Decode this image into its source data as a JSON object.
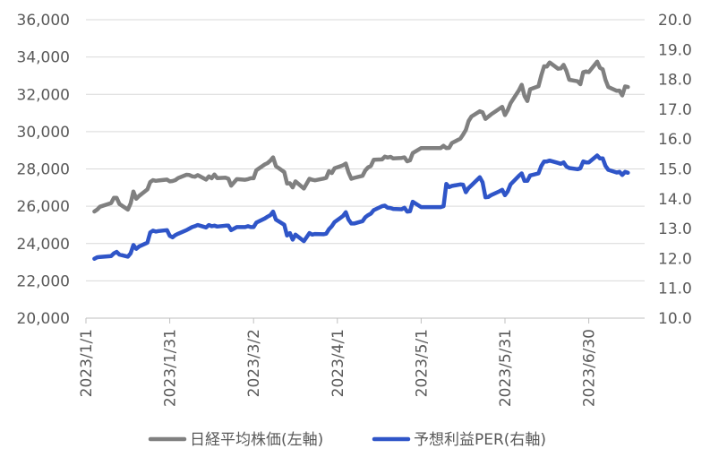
{
  "chart_data": {
    "type": "line",
    "title": "",
    "xlabel": "",
    "ylabel": "",
    "x_ticks": [
      "2023/1/1",
      "2023/1/31",
      "2023/3/2",
      "2023/4/1",
      "2023/5/1",
      "2023/5/31",
      "2023/6/30"
    ],
    "y_left": {
      "ticks": [
        "20,000",
        "22,000",
        "24,000",
        "26,000",
        "28,000",
        "30,000",
        "32,000",
        "34,000",
        "36,000"
      ],
      "range": [
        20000,
        36000
      ]
    },
    "y_right": {
      "ticks": [
        "10.0",
        "11.0",
        "12.0",
        "13.0",
        "14.0",
        "15.0",
        "16.0",
        "17.0",
        "18.0",
        "19.0",
        "20.0"
      ],
      "range": [
        10,
        20
      ]
    },
    "grid": true,
    "legend_position": "bottom",
    "series": [
      {
        "name": "日経平均株価(左軸)",
        "axis": "left",
        "color": "#808080",
        "points": [
          [
            "2023/1/4",
            25720
          ],
          [
            "2023/1/5",
            25820
          ],
          [
            "2023/1/6",
            25970
          ],
          [
            "2023/1/10",
            26170
          ],
          [
            "2023/1/11",
            26450
          ],
          [
            "2023/1/12",
            26450
          ],
          [
            "2023/1/13",
            26120
          ],
          [
            "2023/1/16",
            25820
          ],
          [
            "2023/1/17",
            26150
          ],
          [
            "2023/1/18",
            26790
          ],
          [
            "2023/1/19",
            26400
          ],
          [
            "2023/1/20",
            26550
          ],
          [
            "2023/1/23",
            26900
          ],
          [
            "2023/1/24",
            27300
          ],
          [
            "2023/1/25",
            27400
          ],
          [
            "2023/1/26",
            27360
          ],
          [
            "2023/1/27",
            27380
          ],
          [
            "2023/1/30",
            27430
          ],
          [
            "2023/1/31",
            27330
          ],
          [
            "2023/2/1",
            27350
          ],
          [
            "2023/2/2",
            27400
          ],
          [
            "2023/2/3",
            27510
          ],
          [
            "2023/2/6",
            27690
          ],
          [
            "2023/2/7",
            27680
          ],
          [
            "2023/2/8",
            27600
          ],
          [
            "2023/2/9",
            27580
          ],
          [
            "2023/2/10",
            27670
          ],
          [
            "2023/2/13",
            27430
          ],
          [
            "2023/2/14",
            27600
          ],
          [
            "2023/2/15",
            27500
          ],
          [
            "2023/2/16",
            27700
          ],
          [
            "2023/2/17",
            27510
          ],
          [
            "2023/2/20",
            27530
          ],
          [
            "2023/2/21",
            27470
          ],
          [
            "2023/2/22",
            27100
          ],
          [
            "2023/2/24",
            27450
          ],
          [
            "2023/2/27",
            27420
          ],
          [
            "2023/2/28",
            27450
          ],
          [
            "2023/3/1",
            27500
          ],
          [
            "2023/3/2",
            27500
          ],
          [
            "2023/3/3",
            27930
          ],
          [
            "2023/3/6",
            28240
          ],
          [
            "2023/3/7",
            28310
          ],
          [
            "2023/3/8",
            28440
          ],
          [
            "2023/3/9",
            28620
          ],
          [
            "2023/3/10",
            28150
          ],
          [
            "2023/3/13",
            27830
          ],
          [
            "2023/3/14",
            27220
          ],
          [
            "2023/3/15",
            27230
          ],
          [
            "2023/3/16",
            27010
          ],
          [
            "2023/3/17",
            27330
          ],
          [
            "2023/3/20",
            26950
          ],
          [
            "2023/3/22",
            27470
          ],
          [
            "2023/3/23",
            27420
          ],
          [
            "2023/3/24",
            27390
          ],
          [
            "2023/3/27",
            27480
          ],
          [
            "2023/3/28",
            27520
          ],
          [
            "2023/3/29",
            27880
          ],
          [
            "2023/3/30",
            27780
          ],
          [
            "2023/3/31",
            28040
          ],
          [
            "2023/4/3",
            28190
          ],
          [
            "2023/4/4",
            28290
          ],
          [
            "2023/4/5",
            27810
          ],
          [
            "2023/4/6",
            27470
          ],
          [
            "2023/4/7",
            27520
          ],
          [
            "2023/4/10",
            27630
          ],
          [
            "2023/4/11",
            27920
          ],
          [
            "2023/4/12",
            28080
          ],
          [
            "2023/4/13",
            28160
          ],
          [
            "2023/4/14",
            28490
          ],
          [
            "2023/4/17",
            28510
          ],
          [
            "2023/4/18",
            28660
          ],
          [
            "2023/4/19",
            28610
          ],
          [
            "2023/4/20",
            28650
          ],
          [
            "2023/4/21",
            28560
          ],
          [
            "2023/4/24",
            28590
          ],
          [
            "2023/4/25",
            28620
          ],
          [
            "2023/4/26",
            28410
          ],
          [
            "2023/4/27",
            28460
          ],
          [
            "2023/4/28",
            28850
          ],
          [
            "2023/5/1",
            29120
          ],
          [
            "2023/5/2",
            29120
          ],
          [
            "2023/5/8",
            29120
          ],
          [
            "2023/5/9",
            29240
          ],
          [
            "2023/5/10",
            29120
          ],
          [
            "2023/5/11",
            29130
          ],
          [
            "2023/5/12",
            29390
          ],
          [
            "2023/5/15",
            29620
          ],
          [
            "2023/5/16",
            29840
          ],
          [
            "2023/5/17",
            30090
          ],
          [
            "2023/5/18",
            30570
          ],
          [
            "2023/5/19",
            30810
          ],
          [
            "2023/5/22",
            31090
          ],
          [
            "2023/5/23",
            31030
          ],
          [
            "2023/5/24",
            30680
          ],
          [
            "2023/5/25",
            30800
          ],
          [
            "2023/5/26",
            30920
          ],
          [
            "2023/5/29",
            31230
          ],
          [
            "2023/5/30",
            31330
          ],
          [
            "2023/5/31",
            30890
          ],
          [
            "2023/6/1",
            31150
          ],
          [
            "2023/6/2",
            31520
          ],
          [
            "2023/6/5",
            32220
          ],
          [
            "2023/6/6",
            32510
          ],
          [
            "2023/6/7",
            31910
          ],
          [
            "2023/6/8",
            31640
          ],
          [
            "2023/6/9",
            32270
          ],
          [
            "2023/6/12",
            32430
          ],
          [
            "2023/6/13",
            33020
          ],
          [
            "2023/6/14",
            33500
          ],
          [
            "2023/6/15",
            33490
          ],
          [
            "2023/6/16",
            33710
          ],
          [
            "2023/6/19",
            33370
          ],
          [
            "2023/6/20",
            33390
          ],
          [
            "2023/6/21",
            33580
          ],
          [
            "2023/6/22",
            33260
          ],
          [
            "2023/6/23",
            32780
          ],
          [
            "2023/6/26",
            32700
          ],
          [
            "2023/6/27",
            32540
          ],
          [
            "2023/6/28",
            33190
          ],
          [
            "2023/6/29",
            33230
          ],
          [
            "2023/6/30",
            33190
          ],
          [
            "2023/7/3",
            33750
          ],
          [
            "2023/7/4",
            33420
          ],
          [
            "2023/7/5",
            33340
          ],
          [
            "2023/7/6",
            32770
          ],
          [
            "2023/7/7",
            32390
          ],
          [
            "2023/7/10",
            32190
          ],
          [
            "2023/7/11",
            32200
          ],
          [
            "2023/7/12",
            31940
          ],
          [
            "2023/7/13",
            32420
          ],
          [
            "2023/7/14",
            32390
          ]
        ]
      },
      {
        "name": "予想利益PER(右軸)",
        "axis": "right",
        "color": "#2f55c8",
        "points": [
          [
            "2023/1/4",
            11.99
          ],
          [
            "2023/1/5",
            12.04
          ],
          [
            "2023/1/6",
            12.05
          ],
          [
            "2023/1/10",
            12.08
          ],
          [
            "2023/1/11",
            12.17
          ],
          [
            "2023/1/12",
            12.22
          ],
          [
            "2023/1/13",
            12.13
          ],
          [
            "2023/1/16",
            12.06
          ],
          [
            "2023/1/17",
            12.17
          ],
          [
            "2023/1/18",
            12.45
          ],
          [
            "2023/1/19",
            12.32
          ],
          [
            "2023/1/20",
            12.4
          ],
          [
            "2023/1/23",
            12.53
          ],
          [
            "2023/1/24",
            12.87
          ],
          [
            "2023/1/25",
            12.93
          ],
          [
            "2023/1/26",
            12.9
          ],
          [
            "2023/1/27",
            12.92
          ],
          [
            "2023/1/30",
            12.95
          ],
          [
            "2023/1/31",
            12.76
          ],
          [
            "2023/2/1",
            12.71
          ],
          [
            "2023/2/2",
            12.78
          ],
          [
            "2023/2/3",
            12.83
          ],
          [
            "2023/2/6",
            12.95
          ],
          [
            "2023/2/7",
            13.0
          ],
          [
            "2023/2/8",
            13.05
          ],
          [
            "2023/2/9",
            13.08
          ],
          [
            "2023/2/10",
            13.12
          ],
          [
            "2023/2/13",
            13.04
          ],
          [
            "2023/2/14",
            13.12
          ],
          [
            "2023/2/15",
            13.08
          ],
          [
            "2023/2/16",
            13.1
          ],
          [
            "2023/2/17",
            13.07
          ],
          [
            "2023/2/20",
            13.1
          ],
          [
            "2023/2/21",
            13.1
          ],
          [
            "2023/2/22",
            12.95
          ],
          [
            "2023/2/24",
            13.05
          ],
          [
            "2023/2/27",
            13.05
          ],
          [
            "2023/2/28",
            13.08
          ],
          [
            "2023/3/1",
            13.05
          ],
          [
            "2023/3/2",
            13.05
          ],
          [
            "2023/3/3",
            13.2
          ],
          [
            "2023/3/6",
            13.34
          ],
          [
            "2023/3/7",
            13.4
          ],
          [
            "2023/3/8",
            13.45
          ],
          [
            "2023/3/9",
            13.57
          ],
          [
            "2023/3/10",
            13.3
          ],
          [
            "2023/3/13",
            13.13
          ],
          [
            "2023/3/14",
            12.77
          ],
          [
            "2023/3/15",
            12.85
          ],
          [
            "2023/3/16",
            12.63
          ],
          [
            "2023/3/17",
            12.8
          ],
          [
            "2023/3/20",
            12.58
          ],
          [
            "2023/3/22",
            12.85
          ],
          [
            "2023/3/23",
            12.8
          ],
          [
            "2023/3/24",
            12.82
          ],
          [
            "2023/3/27",
            12.81
          ],
          [
            "2023/3/28",
            12.83
          ],
          [
            "2023/3/29",
            12.98
          ],
          [
            "2023/3/30",
            13.08
          ],
          [
            "2023/3/31",
            13.22
          ],
          [
            "2023/4/3",
            13.42
          ],
          [
            "2023/4/4",
            13.55
          ],
          [
            "2023/4/5",
            13.3
          ],
          [
            "2023/4/6",
            13.17
          ],
          [
            "2023/4/7",
            13.17
          ],
          [
            "2023/4/10",
            13.25
          ],
          [
            "2023/4/11",
            13.38
          ],
          [
            "2023/4/12",
            13.45
          ],
          [
            "2023/4/13",
            13.5
          ],
          [
            "2023/4/14",
            13.62
          ],
          [
            "2023/4/17",
            13.75
          ],
          [
            "2023/4/18",
            13.77
          ],
          [
            "2023/4/19",
            13.7
          ],
          [
            "2023/4/20",
            13.69
          ],
          [
            "2023/4/21",
            13.66
          ],
          [
            "2023/4/24",
            13.65
          ],
          [
            "2023/4/25",
            13.7
          ],
          [
            "2023/4/26",
            13.57
          ],
          [
            "2023/4/27",
            13.58
          ],
          [
            "2023/4/28",
            13.9
          ],
          [
            "2023/5/1",
            13.72
          ],
          [
            "2023/5/2",
            13.72
          ],
          [
            "2023/5/8",
            13.72
          ],
          [
            "2023/5/9",
            13.75
          ],
          [
            "2023/5/10",
            14.5
          ],
          [
            "2023/5/11",
            14.39
          ],
          [
            "2023/5/12",
            14.43
          ],
          [
            "2023/5/15",
            14.48
          ],
          [
            "2023/5/16",
            14.47
          ],
          [
            "2023/5/17",
            14.22
          ],
          [
            "2023/5/18",
            14.36
          ],
          [
            "2023/5/19",
            14.45
          ],
          [
            "2023/5/22",
            14.72
          ],
          [
            "2023/5/23",
            14.55
          ],
          [
            "2023/5/24",
            14.05
          ],
          [
            "2023/5/25",
            14.06
          ],
          [
            "2023/5/26",
            14.12
          ],
          [
            "2023/5/29",
            14.25
          ],
          [
            "2023/5/30",
            14.3
          ],
          [
            "2023/5/31",
            14.12
          ],
          [
            "2023/6/1",
            14.25
          ],
          [
            "2023/6/2",
            14.48
          ],
          [
            "2023/6/5",
            14.77
          ],
          [
            "2023/6/6",
            14.85
          ],
          [
            "2023/6/7",
            14.6
          ],
          [
            "2023/6/8",
            14.6
          ],
          [
            "2023/6/9",
            14.78
          ],
          [
            "2023/6/12",
            14.85
          ],
          [
            "2023/6/13",
            15.1
          ],
          [
            "2023/6/14",
            15.25
          ],
          [
            "2023/6/15",
            15.25
          ],
          [
            "2023/6/16",
            15.28
          ],
          [
            "2023/6/19",
            15.2
          ],
          [
            "2023/6/20",
            15.17
          ],
          [
            "2023/6/21",
            15.22
          ],
          [
            "2023/6/22",
            15.08
          ],
          [
            "2023/6/23",
            15.03
          ],
          [
            "2023/6/26",
            14.99
          ],
          [
            "2023/6/27",
            15.02
          ],
          [
            "2023/6/28",
            15.25
          ],
          [
            "2023/6/29",
            15.22
          ],
          [
            "2023/6/30",
            15.22
          ],
          [
            "2023/7/3",
            15.45
          ],
          [
            "2023/7/4",
            15.35
          ],
          [
            "2023/7/5",
            15.35
          ],
          [
            "2023/7/6",
            15.1
          ],
          [
            "2023/7/7",
            14.97
          ],
          [
            "2023/7/10",
            14.88
          ],
          [
            "2023/7/11",
            14.9
          ],
          [
            "2023/7/12",
            14.8
          ],
          [
            "2023/7/13",
            14.9
          ],
          [
            "2023/7/14",
            14.87
          ]
        ]
      }
    ]
  }
}
